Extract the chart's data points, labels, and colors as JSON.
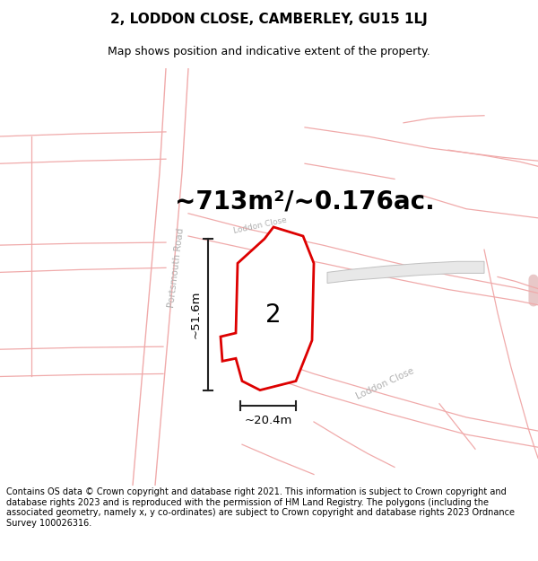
{
  "title": "2, LODDON CLOSE, CAMBERLEY, GU15 1LJ",
  "subtitle": "Map shows position and indicative extent of the property.",
  "area_text": "~713m²/~0.176ac.",
  "label_number": "2",
  "dim_vertical": "~51.6m",
  "dim_horizontal": "~20.4m",
  "road_label_portsmouth": "Portsmouth Road",
  "road_label_loddon": "Loddon Close",
  "road_label_loddon2": "Loddon Close",
  "footer": "Contains OS data © Crown copyright and database right 2021. This information is subject to Crown copyright and database rights 2023 and is reproduced with the permission of HM Land Registry. The polygons (including the associated geometry, namely x, y co-ordinates) are subject to Crown copyright and database rights 2023 Ordnance Survey 100026316.",
  "bg_color": "#ffffff",
  "map_bg": "#ffffff",
  "road_color": "#f0aaaa",
  "road_fill": "#f9f0f0",
  "building_color": "#d8d8d8",
  "building_edge": "#c0c0c0",
  "property_fill": "#ffffff",
  "property_edge": "#dd0000",
  "title_fontsize": 11,
  "subtitle_fontsize": 9,
  "area_fontsize": 20,
  "footer_fontsize": 7.0,
  "road_label_color": "#b0b0b0",
  "dim_line_color": "#222222"
}
